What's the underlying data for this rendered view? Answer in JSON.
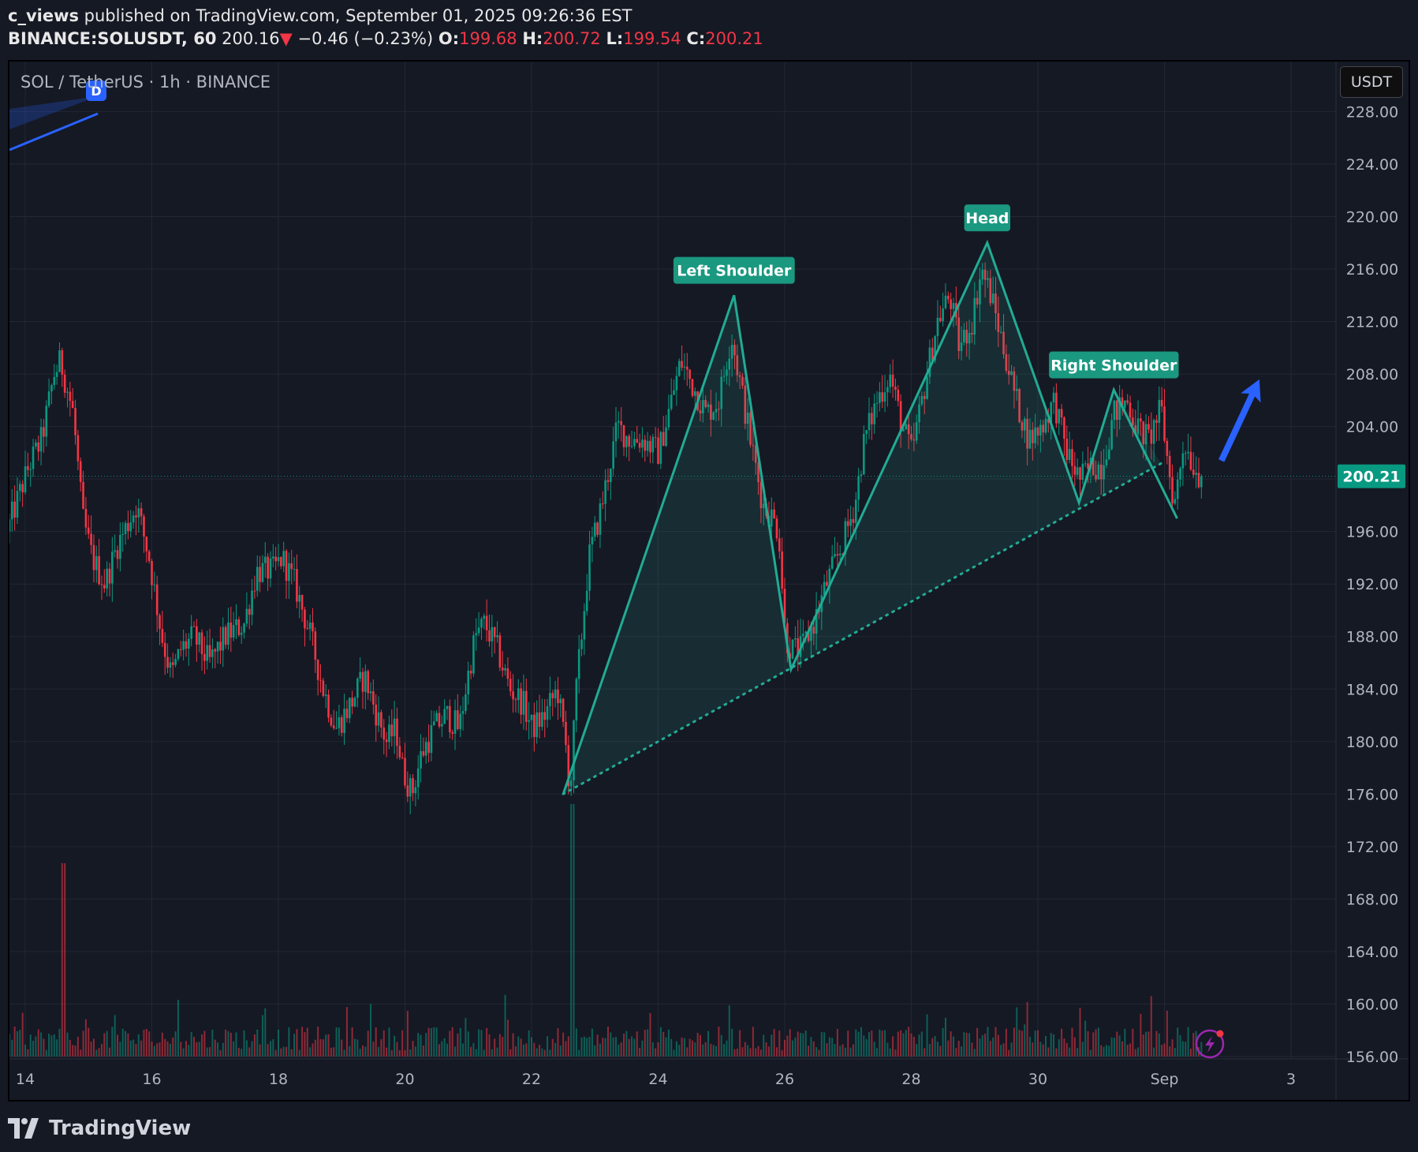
{
  "header": {
    "author": "c_views",
    "publish_text": "published on TradingView.com, September 01, 2025 09:26:36 EST",
    "symbol": "BINANCE:SOLUSDT, 60",
    "last": "200.16",
    "change": "−0.46 (−0.23%)",
    "o_label": "O:",
    "o": "199.68",
    "h_label": "H:",
    "h": "200.72",
    "l_label": "L:",
    "l": "199.54",
    "c_label": "C:",
    "c": "200.21",
    "down_arrow": "▼"
  },
  "legend": {
    "title": "SOL / TetherUS · 1h · BINANCE"
  },
  "currency": "USDT",
  "brand": {
    "name": "TradingView"
  },
  "colors": {
    "up": "#089981",
    "down": "#f23645",
    "pattern": "#22ab94",
    "arrow": "#2962ff",
    "background": "#151924",
    "grid": "#232733"
  },
  "chart_data": {
    "type": "candlestick",
    "symbol": "SOLUSDT",
    "interval": "1h",
    "ylim": [
      156,
      230
    ],
    "y_ticks": [
      "228.00",
      "224.00",
      "220.00",
      "216.00",
      "212.00",
      "208.00",
      "204.00",
      "200.00",
      "196.00",
      "192.00",
      "188.00",
      "184.00",
      "180.00",
      "176.00",
      "172.00",
      "168.00",
      "164.00",
      "160.00",
      "156.00"
    ],
    "x_tick_labels": [
      "14",
      "16",
      "18",
      "20",
      "22",
      "24",
      "26",
      "28",
      "30",
      "Sep",
      "3"
    ],
    "x_tick_days": [
      14,
      16,
      18,
      20,
      22,
      24,
      26,
      28,
      30,
      32,
      34
    ],
    "xlim_days": [
      13.75,
      35.3
    ],
    "last_price": "200.21",
    "price_anchors": [
      [
        13.75,
        196
      ],
      [
        14.1,
        201
      ],
      [
        14.3,
        203
      ],
      [
        14.5,
        208
      ],
      [
        14.6,
        209
      ],
      [
        14.8,
        205
      ],
      [
        14.95,
        197
      ],
      [
        15.1,
        194
      ],
      [
        15.3,
        192
      ],
      [
        15.5,
        195
      ],
      [
        15.8,
        198
      ],
      [
        16.0,
        194
      ],
      [
        16.2,
        188
      ],
      [
        16.35,
        185
      ],
      [
        16.5,
        187
      ],
      [
        16.7,
        188
      ],
      [
        16.95,
        186
      ],
      [
        17.2,
        188
      ],
      [
        17.5,
        189
      ],
      [
        17.7,
        193
      ],
      [
        17.95,
        193
      ],
      [
        18.1,
        194
      ],
      [
        18.3,
        192
      ],
      [
        18.55,
        188
      ],
      [
        18.75,
        184
      ],
      [
        18.95,
        181
      ],
      [
        19.2,
        183
      ],
      [
        19.4,
        185
      ],
      [
        19.6,
        182
      ],
      [
        19.75,
        180
      ],
      [
        19.9,
        181
      ],
      [
        20.0,
        178
      ],
      [
        20.15,
        176
      ],
      [
        20.3,
        179
      ],
      [
        20.5,
        181
      ],
      [
        20.7,
        182
      ],
      [
        20.9,
        181
      ],
      [
        21.0,
        184
      ],
      [
        21.15,
        188
      ],
      [
        21.3,
        189
      ],
      [
        21.5,
        187
      ],
      [
        21.7,
        184
      ],
      [
        21.9,
        183
      ],
      [
        22.05,
        181
      ],
      [
        22.25,
        182
      ],
      [
        22.45,
        184
      ],
      [
        22.6,
        179
      ],
      [
        22.65,
        176
      ],
      [
        22.75,
        184
      ],
      [
        22.95,
        194
      ],
      [
        23.15,
        198
      ],
      [
        23.4,
        204
      ],
      [
        23.6,
        203
      ],
      [
        23.8,
        203
      ],
      [
        24.05,
        202
      ],
      [
        24.25,
        206
      ],
      [
        24.4,
        209
      ],
      [
        24.6,
        207
      ],
      [
        24.8,
        205
      ],
      [
        25.0,
        206
      ],
      [
        25.2,
        211
      ],
      [
        25.35,
        207
      ],
      [
        25.5,
        203
      ],
      [
        25.7,
        198
      ],
      [
        25.85,
        197
      ],
      [
        25.95,
        196
      ],
      [
        26.05,
        188
      ],
      [
        26.15,
        187
      ],
      [
        26.3,
        187
      ],
      [
        26.5,
        189
      ],
      [
        26.7,
        192
      ],
      [
        26.95,
        195
      ],
      [
        27.15,
        198
      ],
      [
        27.3,
        203
      ],
      [
        27.5,
        206
      ],
      [
        27.7,
        208
      ],
      [
        27.9,
        204
      ],
      [
        28.05,
        202
      ],
      [
        28.25,
        207
      ],
      [
        28.45,
        212
      ],
      [
        28.65,
        214
      ],
      [
        28.8,
        210
      ],
      [
        29.0,
        212
      ],
      [
        29.15,
        216
      ],
      [
        29.3,
        214
      ],
      [
        29.5,
        210
      ],
      [
        29.7,
        206
      ],
      [
        29.9,
        203
      ],
      [
        30.1,
        204
      ],
      [
        30.3,
        206
      ],
      [
        30.5,
        202
      ],
      [
        30.7,
        200
      ],
      [
        30.9,
        201
      ],
      [
        31.05,
        201
      ],
      [
        31.25,
        205
      ],
      [
        31.45,
        206
      ],
      [
        31.6,
        204
      ],
      [
        31.8,
        203
      ],
      [
        31.95,
        205
      ],
      [
        32.0,
        205
      ],
      [
        32.1,
        201
      ],
      [
        32.2,
        198
      ],
      [
        32.35,
        203
      ],
      [
        32.5,
        201
      ],
      [
        32.6,
        200.21
      ]
    ],
    "annotations": [
      {
        "type": "label",
        "text": "Left Shoulder",
        "x_day": 25.2,
        "y": 215.9
      },
      {
        "type": "label",
        "text": "Head",
        "x_day": 29.2,
        "y": 219.9
      },
      {
        "type": "label",
        "text": "Right Shoulder",
        "x_day": 31.2,
        "y": 208.7
      },
      {
        "type": "polyline",
        "points": [
          [
            22.5,
            176
          ],
          [
            25.2,
            214
          ],
          [
            26.1,
            185.5
          ],
          [
            29.2,
            218
          ],
          [
            30.65,
            198.2
          ],
          [
            31.2,
            206.8
          ],
          [
            32.2,
            197
          ]
        ]
      },
      {
        "type": "dotted-neckline",
        "from": [
          22.5,
          176
        ],
        "to": [
          31.95,
          201.2
        ]
      },
      {
        "type": "arrow",
        "from": [
          32.9,
          201.4
        ],
        "to": [
          33.5,
          207.6
        ]
      },
      {
        "type": "drawing-marker",
        "text": "D"
      }
    ]
  }
}
